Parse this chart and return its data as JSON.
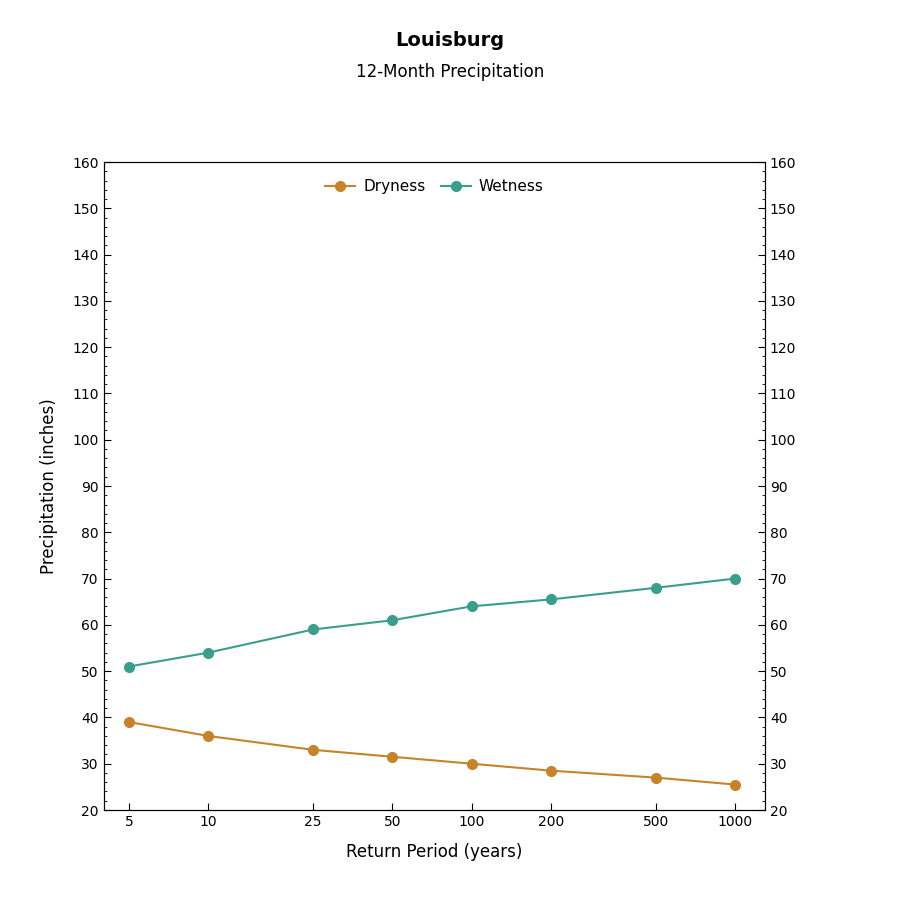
{
  "title": "Louisburg",
  "subtitle": "12-Month Precipitation",
  "xlabel": "Return Period (years)",
  "ylabel": "Precipitation (inches)",
  "x_values": [
    5,
    10,
    25,
    50,
    100,
    200,
    500,
    1000
  ],
  "wetness_values": [
    51,
    54,
    59,
    61,
    64,
    65.5,
    68,
    70
  ],
  "dryness_values": [
    39,
    36,
    33,
    31.5,
    30,
    28.5,
    27,
    25.5
  ],
  "wetness_color": "#3a9e8c",
  "dryness_color": "#c8832a",
  "ylim": [
    20,
    160
  ],
  "yticks": [
    20,
    30,
    40,
    50,
    60,
    70,
    80,
    90,
    100,
    110,
    120,
    130,
    140,
    150,
    160
  ],
  "legend_labels": [
    "Dryness",
    "Wetness"
  ],
  "marker_size": 7,
  "line_width": 1.5,
  "title_fontsize": 14,
  "subtitle_fontsize": 12,
  "axis_label_fontsize": 12,
  "tick_fontsize": 10,
  "legend_fontsize": 11,
  "background_color": "#ffffff"
}
